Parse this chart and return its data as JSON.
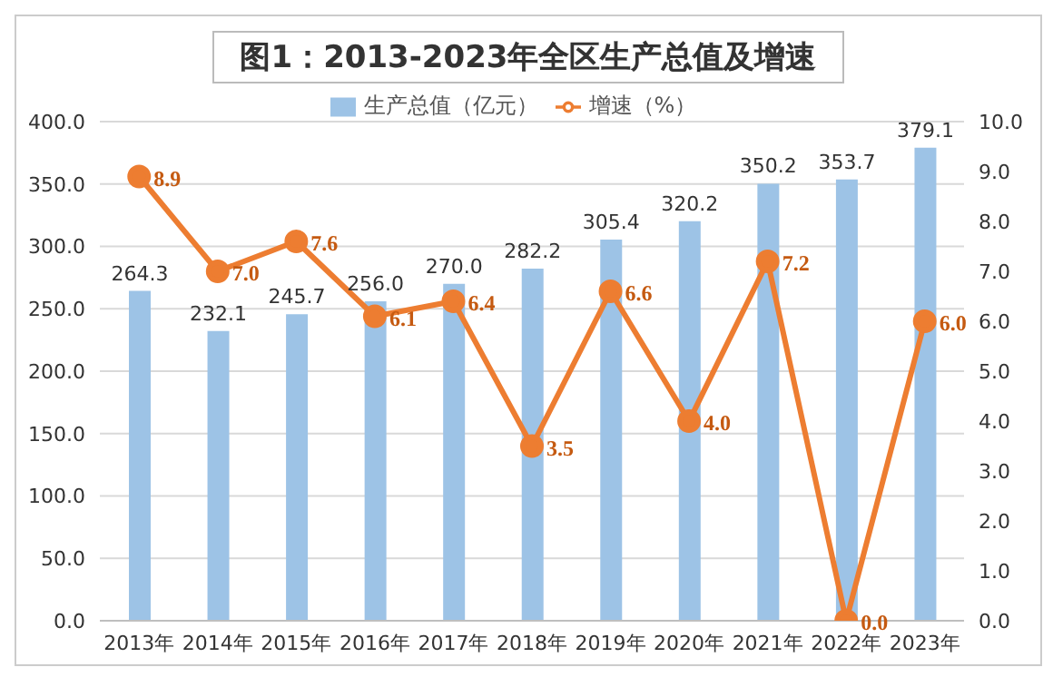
{
  "chart_data": {
    "type": "bar",
    "title": "图1：2013-2023年全区生产总值及增速",
    "categories": [
      "2013年",
      "2014年",
      "2015年",
      "2016年",
      "2017年",
      "2018年",
      "2019年",
      "2020年",
      "2021年",
      "2022年",
      "2023年"
    ],
    "series": [
      {
        "name": "生产总值（亿元）",
        "color": "#9dc3e6",
        "values": [
          264.3,
          232.1,
          245.7,
          256.0,
          270.0,
          282.2,
          305.4,
          320.2,
          350.2,
          353.7,
          379.1
        ],
        "value_labels": [
          "264.3",
          "232.1",
          "245.7",
          "256.0",
          "270.0",
          "282.2",
          "305.4",
          "320.2",
          "350.2",
          "353.7",
          "379.1"
        ]
      },
      {
        "name": "增速（%）",
        "type": "line",
        "axis": "y2",
        "color": "#ed7d31",
        "marker": "circle",
        "values": [
          8.9,
          7.0,
          7.6,
          6.1,
          6.4,
          3.5,
          6.6,
          4.0,
          7.2,
          0.0,
          6.0
        ],
        "value_labels": [
          "8.9",
          "7.0",
          "7.6",
          "6.1",
          "6.4",
          "3.5",
          "6.6",
          "4.0",
          "7.2",
          "0.0",
          "6.0"
        ]
      }
    ],
    "ylim": [
      0,
      400
    ],
    "yticks": [
      {
        "value": 0,
        "label": "0.0"
      },
      {
        "value": 50,
        "label": "50.0"
      },
      {
        "value": 100,
        "label": "100.0"
      },
      {
        "value": 150,
        "label": "150.0"
      },
      {
        "value": 200,
        "label": "200.0"
      },
      {
        "value": 250,
        "label": "250.0"
      },
      {
        "value": 300,
        "label": "300.0"
      },
      {
        "value": 350,
        "label": "350.0"
      },
      {
        "value": 400,
        "label": "400.0"
      }
    ],
    "y2lim": [
      0,
      10
    ],
    "y2ticks": [
      {
        "value": 0,
        "label": "0.0"
      },
      {
        "value": 1,
        "label": "1.0"
      },
      {
        "value": 2,
        "label": "2.0"
      },
      {
        "value": 3,
        "label": "3.0"
      },
      {
        "value": 4,
        "label": "4.0"
      },
      {
        "value": 5,
        "label": "5.0"
      },
      {
        "value": 6,
        "label": "6.0"
      },
      {
        "value": 7,
        "label": "7.0"
      },
      {
        "value": 8,
        "label": "8.0"
      },
      {
        "value": 9,
        "label": "9.0"
      },
      {
        "value": 10,
        "label": "10.0"
      }
    ],
    "grid": "y",
    "legend": "top"
  }
}
